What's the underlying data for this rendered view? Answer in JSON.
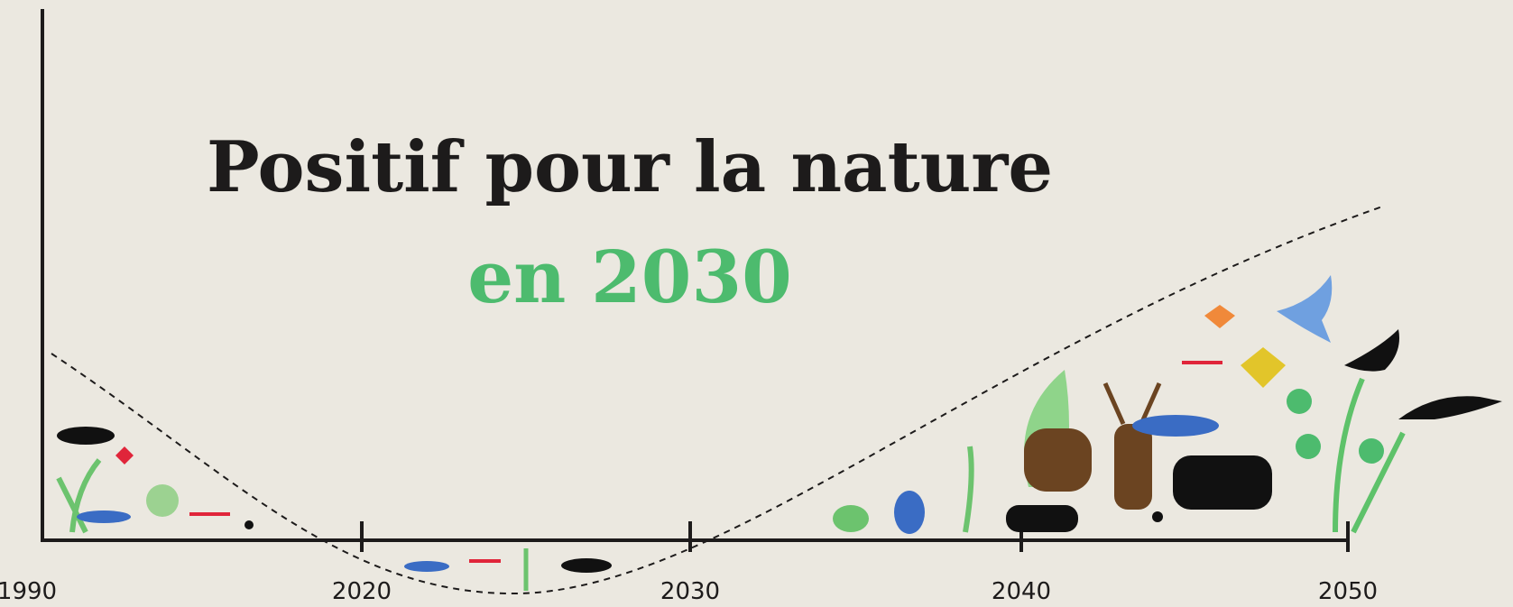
{
  "title": "Positif pour la nature",
  "subtitle": "en 2030",
  "axis": {
    "labels": [
      "1990",
      "2020",
      "2030",
      "2040",
      "2050"
    ]
  }
}
